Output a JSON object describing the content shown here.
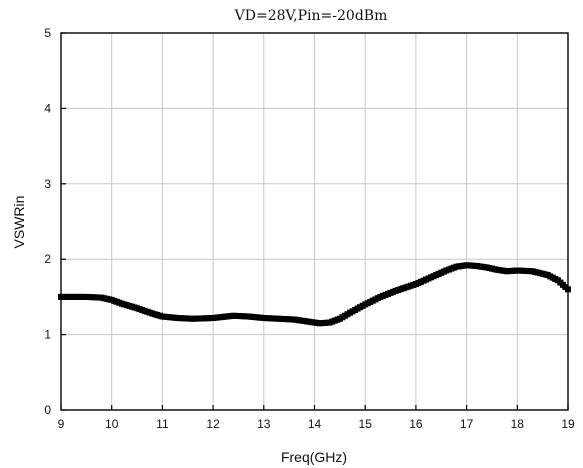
{
  "chart_data": {
    "type": "scatter",
    "title": "VD=28V,Pin=-20dBm",
    "xlabel": "Freq(GHz)",
    "ylabel": "VSWRin",
    "xlim": [
      9,
      19
    ],
    "ylim": [
      0,
      5
    ],
    "xticks": [
      "9",
      "10",
      "11",
      "12",
      "13",
      "14",
      "15",
      "16",
      "17",
      "18",
      "19"
    ],
    "yticks": [
      "0",
      "1",
      "2",
      "3",
      "4",
      "5"
    ],
    "grid": true,
    "marker": "square",
    "marker_color": "#000000",
    "series": [
      {
        "x": [
          9.0,
          9.5,
          9.8,
          10.0,
          10.2,
          10.5,
          10.8,
          11.0,
          11.3,
          11.6,
          12.0,
          12.4,
          12.7,
          13.0,
          13.3,
          13.6,
          13.9,
          14.1,
          14.3,
          14.5,
          14.7,
          15.0,
          15.3,
          15.6,
          16.0,
          16.3,
          16.6,
          16.8,
          17.0,
          17.2,
          17.4,
          17.6,
          17.8,
          18.0,
          18.3,
          18.6,
          18.8,
          19.0
        ],
        "y": [
          1.5,
          1.5,
          1.49,
          1.46,
          1.41,
          1.35,
          1.28,
          1.24,
          1.22,
          1.21,
          1.22,
          1.25,
          1.24,
          1.22,
          1.21,
          1.2,
          1.17,
          1.15,
          1.16,
          1.21,
          1.29,
          1.4,
          1.5,
          1.58,
          1.67,
          1.76,
          1.85,
          1.9,
          1.92,
          1.91,
          1.89,
          1.86,
          1.84,
          1.85,
          1.84,
          1.79,
          1.72,
          1.6
        ]
      }
    ]
  }
}
